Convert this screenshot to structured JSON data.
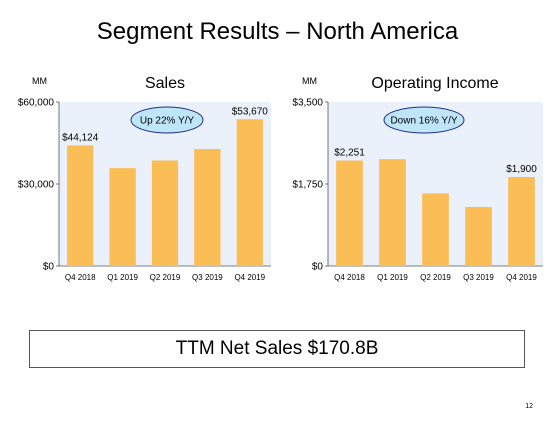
{
  "title": "Segment Results – North America",
  "colors": {
    "bar": "#fbbd55",
    "plot_bg": "#ebf1fb",
    "bubble": "#bfe6f8",
    "axis": "#555555"
  },
  "chart_data": [
    {
      "type": "bar",
      "title": "Sales",
      "unit_label": "MM",
      "categories": [
        "Q4 2018",
        "Q1 2019",
        "Q2 2019",
        "Q3 2019",
        "Q4 2019"
      ],
      "values": [
        44124,
        35800,
        38600,
        42800,
        53670
      ],
      "ylim": [
        0,
        60000
      ],
      "yticks": [
        "$0",
        "$30,000",
        "$60,000"
      ],
      "ytick_values": [
        0,
        30000,
        60000
      ],
      "data_labels": [
        {
          "index": 0,
          "text": "$44,124"
        },
        {
          "index": 4,
          "text": "$53,670"
        }
      ],
      "callout": "Up 22% Y/Y"
    },
    {
      "type": "bar",
      "title": "Operating Income",
      "unit_label": "MM",
      "categories": [
        "Q4 2018",
        "Q1 2019",
        "Q2 2019",
        "Q3 2019",
        "Q4 2019"
      ],
      "values": [
        2251,
        2280,
        1550,
        1260,
        1900
      ],
      "ylim": [
        0,
        3500
      ],
      "yticks": [
        "$0",
        "$1,750",
        "$3,500"
      ],
      "ytick_values": [
        0,
        1750,
        3500
      ],
      "data_labels": [
        {
          "index": 0,
          "text": "$2,251"
        },
        {
          "index": 4,
          "text": "$1,900"
        }
      ],
      "callout": "Down 16% Y/Y"
    }
  ],
  "ttm": "TTM Net Sales $170.8B",
  "page_number": "12"
}
